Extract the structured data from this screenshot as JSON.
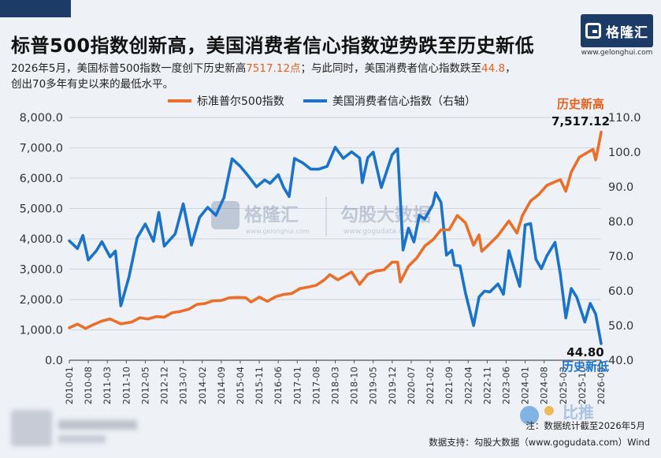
{
  "header": {
    "title": "标普500指数创新高，美国消费者信心指数逆势跌至历史新低",
    "desc_line1_a": "2026年5月，美国标普500指数一度创下历史新高",
    "desc_line1_hl1": "7517.12点",
    "desc_line1_b": "；与此同时，美国消费者信心指数跌至",
    "desc_line1_hl2": "44.8",
    "desc_line1_c": "，",
    "desc_line2": "创出70多年有史以来的最低水平。"
  },
  "logo": {
    "name": "格隆汇",
    "url": "www.gelonghui.com"
  },
  "watermark": {
    "brand1": "格隆汇",
    "url1": "www.gelonghui.com",
    "brand2": "勾股大数据",
    "url2": "www.gogudata.com"
  },
  "footer": {
    "note": "注：数据统计截至2026年5月",
    "source": "数据支持：勾股大数据（www.gogudata.com）Wind",
    "sticker": "比推"
  },
  "colors": {
    "sp500": "#e8702a",
    "confidence": "#1a73c7",
    "accent": "#e2621f",
    "brand": "#1d3b67"
  },
  "chart_data": {
    "type": "line",
    "title": "",
    "legend_placement": "top",
    "left_axis": {
      "ylim": [
        0,
        8000
      ],
      "ticks": [
        "8,000.0",
        "7,000.0",
        "6,000.0",
        "5,000.0",
        "4,000.0",
        "3,000.0",
        "2,000.0",
        "1,000.0",
        "0.0"
      ]
    },
    "right_axis": {
      "ylim": [
        40,
        110
      ],
      "ticks": [
        "110.0",
        "100.0",
        "90.0",
        "80.0",
        "70.0",
        "60.0",
        "50.0",
        "40.0"
      ]
    },
    "x_labels": [
      "2010-01",
      "2010-08",
      "2011-03",
      "2011-10",
      "2012-05",
      "2012-12",
      "2013-07",
      "2014-02",
      "2014-09",
      "2015-04",
      "2015-11",
      "2016-06",
      "2017-01",
      "2017-08",
      "2018-03",
      "2018-10",
      "2019-05",
      "2019-12",
      "2020-07",
      "2021-02",
      "2021-09",
      "2022-04",
      "2022-11",
      "2023-06",
      "2024-01",
      "2024-08",
      "2025-03",
      "2025-10",
      "2026-05"
    ],
    "series": [
      {
        "name": "标准普尔500指数",
        "axis": "left",
        "points": [
          [
            "2010-01",
            1070
          ],
          [
            "2010-04",
            1190
          ],
          [
            "2010-07",
            1050
          ],
          [
            "2010-10",
            1180
          ],
          [
            "2011-01",
            1290
          ],
          [
            "2011-04",
            1360
          ],
          [
            "2011-08",
            1200
          ],
          [
            "2011-12",
            1260
          ],
          [
            "2012-03",
            1400
          ],
          [
            "2012-06",
            1360
          ],
          [
            "2012-09",
            1440
          ],
          [
            "2012-12",
            1420
          ],
          [
            "2013-03",
            1570
          ],
          [
            "2013-06",
            1610
          ],
          [
            "2013-09",
            1680
          ],
          [
            "2013-12",
            1840
          ],
          [
            "2014-03",
            1870
          ],
          [
            "2014-06",
            1960
          ],
          [
            "2014-09",
            1970
          ],
          [
            "2014-12",
            2060
          ],
          [
            "2015-03",
            2070
          ],
          [
            "2015-06",
            2060
          ],
          [
            "2015-08",
            1920
          ],
          [
            "2015-11",
            2080
          ],
          [
            "2016-02",
            1940
          ],
          [
            "2016-05",
            2090
          ],
          [
            "2016-08",
            2170
          ],
          [
            "2016-11",
            2200
          ],
          [
            "2017-02",
            2360
          ],
          [
            "2017-05",
            2410
          ],
          [
            "2017-08",
            2470
          ],
          [
            "2017-11",
            2650
          ],
          [
            "2018-01",
            2820
          ],
          [
            "2018-04",
            2650
          ],
          [
            "2018-09",
            2910
          ],
          [
            "2018-12",
            2500
          ],
          [
            "2019-03",
            2830
          ],
          [
            "2019-06",
            2940
          ],
          [
            "2019-09",
            2980
          ],
          [
            "2019-12",
            3230
          ],
          [
            "2020-02",
            3230
          ],
          [
            "2020-03",
            2580
          ],
          [
            "2020-06",
            3100
          ],
          [
            "2020-09",
            3360
          ],
          [
            "2020-12",
            3760
          ],
          [
            "2021-03",
            3970
          ],
          [
            "2021-06",
            4300
          ],
          [
            "2021-09",
            4300
          ],
          [
            "2021-12",
            4770
          ],
          [
            "2022-03",
            4530
          ],
          [
            "2022-06",
            3790
          ],
          [
            "2022-08",
            4130
          ],
          [
            "2022-09",
            3590
          ],
          [
            "2022-12",
            3840
          ],
          [
            "2023-03",
            4110
          ],
          [
            "2023-07",
            4590
          ],
          [
            "2023-10",
            4190
          ],
          [
            "2023-12",
            4770
          ],
          [
            "2024-03",
            5250
          ],
          [
            "2024-06",
            5460
          ],
          [
            "2024-09",
            5760
          ],
          [
            "2024-12",
            5880
          ],
          [
            "2025-02",
            5950
          ],
          [
            "2025-04",
            5570
          ],
          [
            "2025-06",
            6200
          ],
          [
            "2025-09",
            6690
          ],
          [
            "2025-12",
            6850
          ],
          [
            "2026-02",
            6950
          ],
          [
            "2026-03",
            6600
          ],
          [
            "2026-04",
            7050
          ],
          [
            "2026-05",
            7517.12
          ]
        ]
      },
      {
        "name": "美国消费者信心指数（右轴）",
        "axis": "right",
        "points": [
          [
            "2010-01",
            74.4
          ],
          [
            "2010-04",
            72.2
          ],
          [
            "2010-06",
            76.0
          ],
          [
            "2010-08",
            68.9
          ],
          [
            "2010-11",
            71.6
          ],
          [
            "2011-01",
            74.2
          ],
          [
            "2011-04",
            69.8
          ],
          [
            "2011-06",
            71.5
          ],
          [
            "2011-08",
            55.7
          ],
          [
            "2011-11",
            64.1
          ],
          [
            "2012-02",
            75.3
          ],
          [
            "2012-05",
            79.3
          ],
          [
            "2012-08",
            74.3
          ],
          [
            "2012-10",
            82.6
          ],
          [
            "2012-12",
            72.9
          ],
          [
            "2013-04",
            76.4
          ],
          [
            "2013-07",
            85.1
          ],
          [
            "2013-10",
            73.2
          ],
          [
            "2014-01",
            81.2
          ],
          [
            "2014-04",
            84.1
          ],
          [
            "2014-07",
            81.8
          ],
          [
            "2014-10",
            86.9
          ],
          [
            "2015-01",
            98.1
          ],
          [
            "2015-04",
            95.9
          ],
          [
            "2015-07",
            93.1
          ],
          [
            "2015-10",
            90.0
          ],
          [
            "2016-01",
            92.0
          ],
          [
            "2016-03",
            91.0
          ],
          [
            "2016-06",
            93.5
          ],
          [
            "2016-08",
            89.8
          ],
          [
            "2016-10",
            87.2
          ],
          [
            "2016-12",
            98.2
          ],
          [
            "2017-03",
            96.9
          ],
          [
            "2017-06",
            95.1
          ],
          [
            "2017-09",
            95.1
          ],
          [
            "2017-12",
            95.9
          ],
          [
            "2018-03",
            101.4
          ],
          [
            "2018-06",
            98.2
          ],
          [
            "2018-09",
            100.1
          ],
          [
            "2018-12",
            98.3
          ],
          [
            "2019-01",
            91.2
          ],
          [
            "2019-03",
            98.4
          ],
          [
            "2019-05",
            100.0
          ],
          [
            "2019-08",
            89.8
          ],
          [
            "2019-12",
            99.3
          ],
          [
            "2020-02",
            101.0
          ],
          [
            "2020-04",
            71.8
          ],
          [
            "2020-06",
            78.1
          ],
          [
            "2020-08",
            74.1
          ],
          [
            "2020-10",
            81.8
          ],
          [
            "2020-12",
            80.7
          ],
          [
            "2021-03",
            84.9
          ],
          [
            "2021-04",
            88.3
          ],
          [
            "2021-06",
            85.5
          ],
          [
            "2021-08",
            70.3
          ],
          [
            "2021-10",
            71.7
          ],
          [
            "2021-11",
            67.4
          ],
          [
            "2022-01",
            67.2
          ],
          [
            "2022-03",
            59.4
          ],
          [
            "2022-06",
            50.0
          ],
          [
            "2022-08",
            58.2
          ],
          [
            "2022-10",
            59.9
          ],
          [
            "2022-12",
            59.7
          ],
          [
            "2023-03",
            62.0
          ],
          [
            "2023-05",
            59.0
          ],
          [
            "2023-07",
            71.6
          ],
          [
            "2023-10",
            63.8
          ],
          [
            "2023-11",
            61.3
          ],
          [
            "2024-01",
            79.0
          ],
          [
            "2024-03",
            79.4
          ],
          [
            "2024-05",
            69.1
          ],
          [
            "2024-07",
            66.4
          ],
          [
            "2024-09",
            70.1
          ],
          [
            "2024-12",
            74.0
          ],
          [
            "2025-02",
            64.7
          ],
          [
            "2025-04",
            52.2
          ],
          [
            "2025-06",
            60.7
          ],
          [
            "2025-08",
            58.2
          ],
          [
            "2025-11",
            51.0
          ],
          [
            "2026-01",
            56.4
          ],
          [
            "2026-03",
            53.3
          ],
          [
            "2026-05",
            44.8
          ]
        ]
      }
    ],
    "annotations": [
      {
        "text": "历史新高",
        "value": "7,517.12"
      },
      {
        "text": "历史新低",
        "value": "44.80"
      }
    ]
  }
}
